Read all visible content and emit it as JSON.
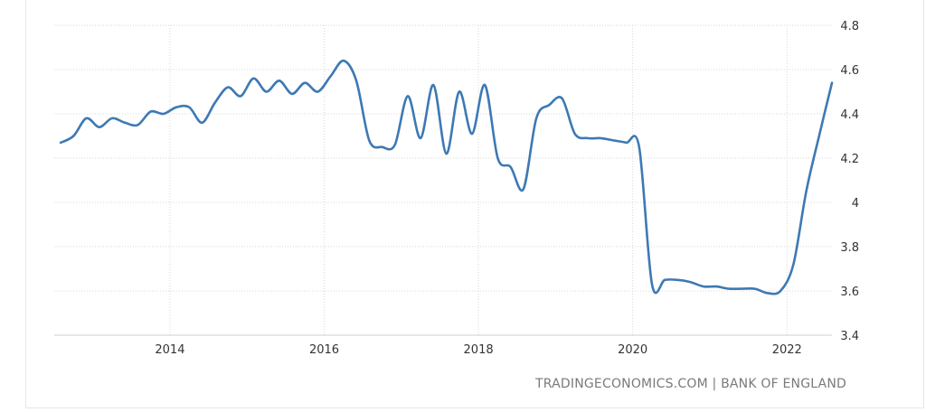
{
  "chart_data": {
    "type": "line",
    "title": "",
    "xlabel": "",
    "ylabel": "",
    "ylim": [
      3.4,
      4.8
    ],
    "xlim": [
      "2012-07",
      "2022-08"
    ],
    "grid": true,
    "y_ticks": [
      "4.8",
      "4.6",
      "4.4",
      "4.2",
      "4",
      "3.8",
      "3.6",
      "3.4"
    ],
    "x_ticks": [
      "2014",
      "2016",
      "2018",
      "2020",
      "2022"
    ],
    "line_color": "#3d79b4",
    "series": [
      {
        "x": [
          "2012-08",
          "2012-10",
          "2012-12",
          "2013-02",
          "2013-04",
          "2013-06",
          "2013-08",
          "2013-10",
          "2013-12",
          "2014-02",
          "2014-04",
          "2014-06",
          "2014-08",
          "2014-10",
          "2014-12",
          "2015-02",
          "2015-04",
          "2015-06",
          "2015-08",
          "2015-10",
          "2015-12",
          "2016-02",
          "2016-04",
          "2016-06",
          "2016-08",
          "2016-10",
          "2016-12",
          "2017-02",
          "2017-04",
          "2017-06",
          "2017-08",
          "2017-10",
          "2017-12",
          "2018-02",
          "2018-04",
          "2018-06",
          "2018-08",
          "2018-10",
          "2018-12",
          "2019-02",
          "2019-04",
          "2019-06",
          "2019-08",
          "2019-10",
          "2019-12",
          "2020-02",
          "2020-04",
          "2020-06",
          "2020-08",
          "2020-10",
          "2020-12",
          "2021-02",
          "2021-04",
          "2021-06",
          "2021-08",
          "2021-10",
          "2021-12",
          "2022-02",
          "2022-04",
          "2022-06",
          "2022-08"
        ],
        "values": [
          4.27,
          4.3,
          4.38,
          4.34,
          4.38,
          4.36,
          4.35,
          4.41,
          4.4,
          4.43,
          4.43,
          4.36,
          4.45,
          4.52,
          4.48,
          4.56,
          4.5,
          4.55,
          4.49,
          4.54,
          4.5,
          4.57,
          4.64,
          4.55,
          4.28,
          4.25,
          4.26,
          4.48,
          4.29,
          4.53,
          4.22,
          4.5,
          4.31,
          4.53,
          4.2,
          4.16,
          4.06,
          4.38,
          4.44,
          4.47,
          4.31,
          4.29,
          4.29,
          4.28,
          4.27,
          4.25,
          3.63,
          3.65,
          3.65,
          3.64,
          3.62,
          3.62,
          3.61,
          3.61,
          3.61,
          3.59,
          3.6,
          3.72,
          4.05,
          4.3,
          4.54
        ]
      }
    ]
  },
  "footer": {
    "source": "TRADINGECONOMICS.COM | BANK OF ENGLAND"
  }
}
